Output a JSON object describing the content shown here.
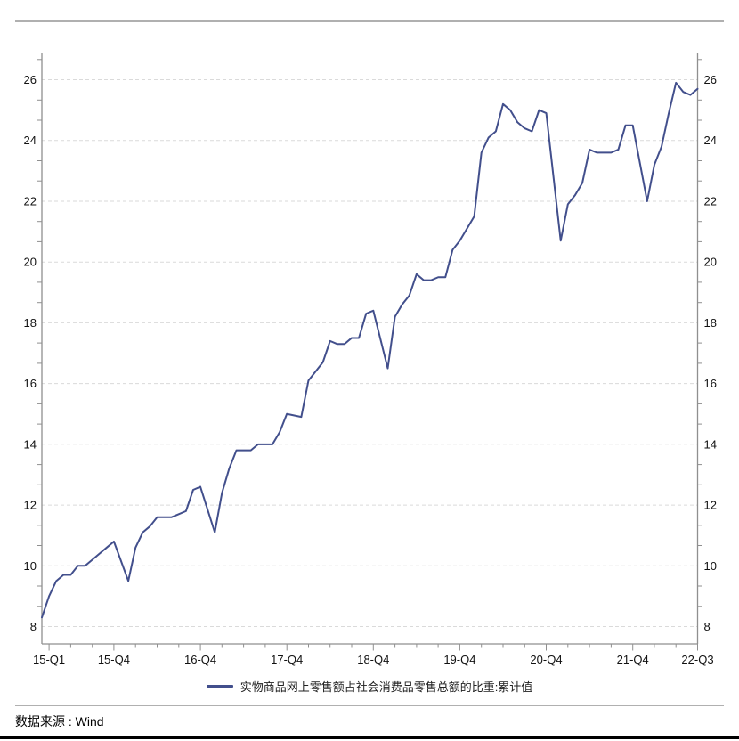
{
  "chart_data": {
    "type": "line",
    "title": "",
    "x_description": "monthly cumulative points, Feb-Dec each year (Jan-Feb combined), 2015-02 through 2022-09",
    "x_tick_labels": [
      {
        "label": "15-Q1",
        "month": 2
      },
      {
        "label": "15-Q4",
        "month": 11
      },
      {
        "label": "16-Q4",
        "month": 23
      },
      {
        "label": "17-Q4",
        "month": 35
      },
      {
        "label": "18-Q4",
        "month": 47
      },
      {
        "label": "19-Q4",
        "month": 59
      },
      {
        "label": "20-Q4",
        "month": 71
      },
      {
        "label": "21-Q4",
        "month": 83
      },
      {
        "label": "22-Q3",
        "month": 92
      }
    ],
    "y_ticks": [
      8,
      10,
      12,
      14,
      16,
      18,
      20,
      22,
      24,
      26
    ],
    "ylim": [
      8,
      26
    ],
    "y_axis_sides": [
      "left",
      "right"
    ],
    "grid": "dashed-horizontal",
    "legend_position": "bottom-center",
    "colors": {
      "series": "#424f8c",
      "grid": "#dadada",
      "axis": "#8f8f8f",
      "label": "#111111"
    },
    "series": [
      {
        "name": "实物商品网上零售额占社会消费品零售总额的比重:累计值",
        "color": "#424f8c",
        "points_by_year": {
          "2015": [
            8.3,
            9.0,
            9.5,
            9.7,
            9.7,
            10.0,
            10.0,
            10.2,
            10.4,
            10.6,
            10.8
          ],
          "2016": [
            9.5,
            10.6,
            11.1,
            11.3,
            11.6,
            11.6,
            11.6,
            11.7,
            11.8,
            12.5,
            12.6
          ],
          "2017": [
            11.1,
            12.4,
            13.2,
            13.8,
            13.8,
            13.8,
            14.0,
            14.0,
            14.0,
            14.4,
            15.0
          ],
          "2018": [
            14.9,
            16.1,
            16.4,
            16.7,
            17.4,
            17.3,
            17.3,
            17.5,
            17.5,
            18.3,
            18.4
          ],
          "2019": [
            16.5,
            18.2,
            18.6,
            18.9,
            19.6,
            19.4,
            19.4,
            19.5,
            19.5,
            20.4,
            20.7
          ],
          "2020": [
            21.5,
            23.6,
            24.1,
            24.3,
            25.2,
            25.0,
            24.6,
            24.4,
            24.3,
            25.0,
            24.9
          ],
          "2021": [
            20.7,
            21.9,
            22.2,
            22.6,
            23.7,
            23.6,
            23.6,
            23.6,
            23.7,
            24.5,
            24.5
          ],
          "2022": [
            22.0,
            23.2,
            23.8,
            24.9,
            25.9,
            25.6,
            25.5,
            25.7
          ]
        }
      }
    ]
  },
  "footer": {
    "source": "数据来源 : Wind"
  }
}
